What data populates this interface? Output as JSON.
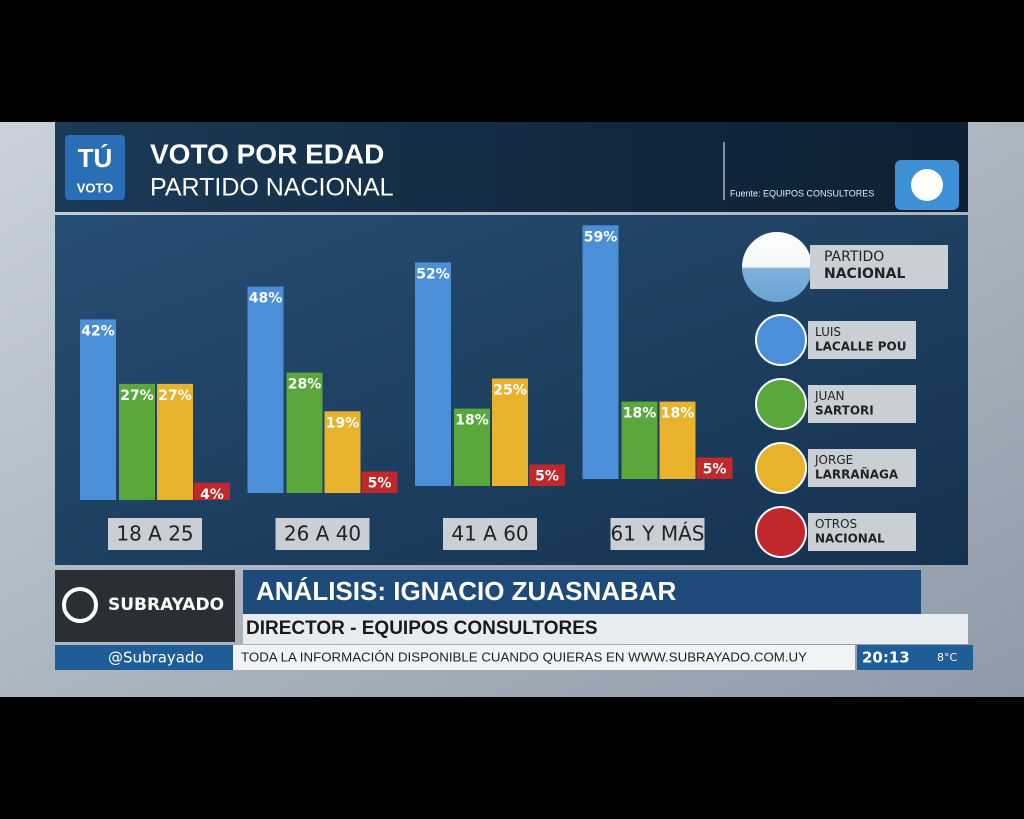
{
  "header": {
    "logo_top": "TÚ",
    "logo_bottom": "VOTO",
    "title": "VOTO  POR EDAD",
    "subtitle": "PARTIDO NACIONAL",
    "source": "Fuente: EQUIPOS CONSULTORES"
  },
  "chart_data": {
    "type": "bar",
    "legend_title": "PARTIDO NACIONAL",
    "categories": [
      "18 A 25",
      "26 A 40",
      "41 A 60",
      "61 Y MÁS"
    ],
    "series": [
      {
        "name": "LUIS LACALLE POU",
        "color": "#4a8fd8",
        "values": [
          42,
          48,
          52,
          59
        ],
        "value_labels": [
          "42%",
          "48%",
          "52%",
          "59%"
        ]
      },
      {
        "name": "JUAN SARTORI",
        "color": "#5aa83c",
        "values": [
          27,
          28,
          18,
          18
        ],
        "value_labels": [
          "27%",
          "28%",
          "18%",
          "18%"
        ]
      },
      {
        "name": "JORGE LARRAÑAGA",
        "color": "#e8b22c",
        "values": [
          27,
          19,
          25,
          18
        ],
        "value_labels": [
          "27%",
          "19%",
          "25%",
          "18%"
        ]
      },
      {
        "name": "OTROS NACIONAL",
        "color": "#c0282c",
        "values": [
          4,
          5,
          5,
          5
        ],
        "value_labels": [
          "4%",
          "5%",
          "5%",
          "5%"
        ]
      }
    ]
  },
  "lower_third": {
    "brand": "SUBRAYADO",
    "title": "ANÁLISIS: IGNACIO ZUASNABAR",
    "subtitle": "DIRECTOR - EQUIPOS CONSULTORES"
  },
  "ticker": {
    "handle": "@Subrayado",
    "text": "TODA LA INFORMACIÓN DISPONIBLE CUANDO QUIERAS EN WWW.SUBRAYADO.COM.UY",
    "time": "20:13",
    "temperature": "8°C"
  }
}
